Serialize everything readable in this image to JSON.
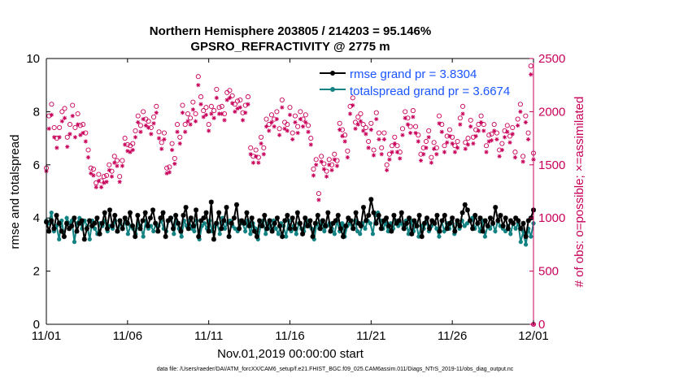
{
  "chart_data": {
    "type": "line",
    "title_line1": "Northern Hemisphere 203805 / 214203 = 95.146%",
    "title_line2": "GPSRO_REFRACTIVITY @ 2775 m",
    "xlabel": "Nov.01,2019 00:00:00 start",
    "ylabel_left": "rmse and totalspread",
    "ylabel_right": "# of obs: o=possible; ×=assimilated",
    "footnote": "data file: /Users/raeder/DAI/ATM_forcXX/CAM6_setup/f.e21.FHIST_BGC.f09_025.CAM6assim.011/Diags_NTrS_2019-11/obs_diag_output.nc",
    "x_unit": "days since 11/01 00:00 (6-hourly)",
    "xlim": [
      0,
      30
    ],
    "x_ticks": [
      0,
      5,
      10,
      15,
      20,
      25,
      30
    ],
    "x_tick_labels": [
      "11/01",
      "11/06",
      "11/11",
      "11/16",
      "11/21",
      "11/26",
      "12/01"
    ],
    "ylim_left": [
      0,
      10
    ],
    "y_ticks_left": [
      0,
      2,
      4,
      6,
      8,
      10
    ],
    "y_tick_labels_left": [
      "0",
      "2",
      "4",
      "6",
      "8",
      "10"
    ],
    "ylim_right": [
      0,
      2500
    ],
    "y_ticks_right": [
      0,
      500,
      1000,
      1500,
      2000,
      2500
    ],
    "y_tick_labels_right": [
      "0",
      "500",
      "1000",
      "1500",
      "2000",
      "2500"
    ],
    "legend_position": "top-right",
    "colors": {
      "rmse": "#000000",
      "spread": "#138282",
      "obs": "#c8005a",
      "legend_text": "#1a55ff"
    },
    "series": [
      {
        "name": "rmse grand pr = 3.8304",
        "axis": "left",
        "values": [
          3.85,
          3.5,
          3.9,
          3.6,
          4.1,
          3.8,
          3.5,
          3.3,
          3.8,
          3.6,
          3.7,
          4.0,
          3.5,
          3.8,
          3.9,
          3.2,
          3.6,
          3.9,
          3.7,
          3.8,
          4.0,
          3.4,
          3.8,
          4.2,
          3.6,
          4.3,
          3.7,
          4.1,
          3.5,
          3.9,
          3.6,
          4.0,
          3.8,
          4.2,
          3.7,
          3.3,
          4.1,
          3.6,
          3.9,
          4.2,
          3.7,
          4.0,
          4.3,
          3.8,
          3.5,
          4.0,
          4.2,
          3.3,
          3.9,
          4.0,
          3.6,
          4.1,
          3.8,
          3.5,
          4.1,
          4.4,
          3.6,
          4.0,
          3.7,
          4.3,
          3.3,
          3.9,
          4.0,
          4.2,
          3.5,
          4.6,
          3.2,
          3.8,
          4.2,
          3.6,
          3.9,
          4.4,
          3.3,
          3.8,
          4.0,
          4.5,
          3.6,
          3.9,
          3.8,
          4.2,
          3.7,
          4.0,
          3.5,
          3.3,
          3.9,
          3.7,
          4.1,
          3.6,
          3.9,
          3.5,
          3.8,
          4.0,
          3.7,
          3.3,
          3.9,
          4.1,
          3.6,
          4.0,
          3.6,
          4.2,
          3.8,
          3.4,
          4.0,
          3.7,
          3.9,
          3.3,
          3.8,
          4.1,
          3.6,
          3.9,
          3.7,
          4.2,
          3.5,
          3.8,
          3.9,
          4.1,
          3.6,
          3.3,
          3.7,
          4.0,
          3.9,
          3.6,
          4.2,
          3.8,
          3.7,
          4.4,
          3.9,
          4.1,
          4.7,
          4.2,
          3.8,
          4.1,
          3.6,
          3.9,
          4.0,
          3.7,
          3.5,
          4.1,
          3.8,
          3.9,
          4.2,
          3.6,
          3.8,
          4.0,
          3.4,
          3.9,
          3.7,
          4.1,
          3.3,
          3.8,
          4.0,
          3.6,
          3.9,
          3.8,
          4.1,
          3.5,
          3.9,
          4.1,
          3.6,
          3.8,
          4.0,
          3.5,
          3.9,
          3.7,
          4.2,
          4.5,
          4.3,
          3.9,
          3.6,
          4.1,
          3.8,
          4.0,
          3.5,
          3.9,
          3.7,
          4.0,
          3.8,
          4.4,
          3.9,
          4.1,
          3.7,
          4.0,
          3.6,
          3.9,
          3.8,
          4.0,
          3.9,
          3.6,
          3.8,
          3.3,
          3.9,
          4.0,
          4.3
        ],
        "grand_mean": 3.8304
      },
      {
        "name": "totalspread grand pr = 3.6674",
        "axis": "left",
        "values": [
          3.9,
          3.8,
          4.2,
          3.5,
          3.7,
          3.2,
          3.9,
          3.3,
          4.0,
          3.8,
          3.9,
          3.1,
          3.8,
          4.0,
          3.6,
          3.9,
          3.7,
          3.2,
          3.9,
          3.6,
          3.4,
          3.8,
          3.7,
          3.9,
          3.5,
          3.7,
          3.6,
          3.9,
          3.5,
          3.8,
          3.6,
          3.9,
          3.4,
          3.7,
          3.6,
          3.4,
          3.8,
          3.7,
          3.3,
          3.9,
          3.6,
          3.7,
          3.5,
          3.8,
          3.7,
          3.9,
          3.6,
          3.5,
          3.9,
          4.0,
          3.4,
          3.9,
          3.6,
          3.3,
          3.9,
          3.7,
          3.9,
          3.6,
          3.5,
          3.9,
          3.2,
          3.7,
          3.8,
          3.6,
          3.9,
          3.5,
          3.7,
          3.8,
          3.4,
          4.0,
          3.6,
          3.8,
          3.9,
          3.7,
          3.6,
          3.5,
          3.9,
          3.8,
          3.5,
          3.9,
          3.4,
          3.8,
          3.6,
          3.2,
          3.7,
          3.9,
          3.4,
          3.8,
          3.6,
          3.9,
          3.6,
          3.4,
          3.8,
          3.7,
          3.3,
          3.9,
          3.5,
          3.7,
          3.4,
          3.8,
          3.6,
          3.5,
          3.9,
          3.7,
          3.6,
          3.2,
          3.8,
          3.6,
          3.9,
          3.5,
          3.7,
          3.8,
          3.6,
          3.4,
          3.9,
          3.5,
          3.8,
          3.3,
          3.7,
          3.8,
          3.6,
          3.9,
          3.5,
          3.4,
          3.8,
          3.6,
          3.9,
          3.8,
          3.4,
          4.1,
          4.2,
          3.9,
          3.6,
          3.8,
          3.5,
          3.8,
          3.6,
          3.9,
          3.7,
          3.8,
          3.6,
          3.9,
          3.4,
          3.9,
          3.5,
          3.8,
          3.3,
          3.7,
          3.6,
          3.9,
          3.5,
          3.7,
          3.8,
          3.6,
          3.3,
          3.9,
          3.5,
          3.8,
          3.6,
          3.9,
          3.4,
          3.8,
          3.6,
          3.9,
          3.7,
          3.8,
          3.9,
          4.0,
          3.6,
          3.8,
          3.5,
          3.9,
          3.3,
          3.7,
          3.6,
          3.8,
          3.5,
          3.9,
          3.7,
          3.6,
          3.5,
          3.7,
          3.4,
          3.8,
          3.6,
          3.8,
          3.1,
          3.5,
          3.0,
          3.6,
          3.3,
          3.8
        ],
        "grand_mean": 3.6674
      },
      {
        "name": "possible obs",
        "axis": "right",
        "marker": "o",
        "values": [
          1470,
          1960,
          2070,
          1850,
          1750,
          1850,
          2000,
          2030,
          1760,
          1880,
          2060,
          1850,
          1980,
          1870,
          1880,
          1800,
          1640,
          1470,
          1460,
          1330,
          1410,
          1350,
          1390,
          1400,
          1500,
          1440,
          1580,
          1540,
          1390,
          1540,
          1750,
          1690,
          1680,
          1700,
          1820,
          1960,
          1870,
          2000,
          1930,
          1910,
          1850,
          1950,
          2050,
          1810,
          1710,
          1800,
          1470,
          1480,
          1700,
          1560,
          1880,
          1760,
          2060,
          1880,
          1980,
          1940,
          2090,
          1980,
          2330,
          2140,
          2010,
          2040,
          1880,
          2050,
          2010,
          2210,
          2040,
          2050,
          1980,
          2180,
          2200,
          2150,
          2070,
          2100,
          2110,
          1990,
          2060,
          2140,
          1660,
          1580,
          1640,
          1570,
          1760,
          1660,
          1930,
          1880,
          1970,
          1930,
          2000,
          1840,
          2110,
          1900,
          1880,
          2040,
          1800,
          1960,
          1860,
          2000,
          1930,
          1970,
          1870,
          1750,
          1460,
          1550,
          1230,
          1580,
          1510,
          1440,
          1550,
          1500,
          1600,
          1540,
          1890,
          1830,
          1780,
          1630,
          2050,
          2130,
          1900,
          1950,
          1980,
          1880,
          1850,
          1720,
          1890,
          1640,
          1990,
          1800,
          1660,
          1800,
          1500,
          1600,
          1680,
          1760,
          1680,
          1620,
          1840,
          2000,
          1940,
          1860,
          2010,
          1860,
          1780,
          1600,
          1660,
          1720,
          1820,
          1570,
          1710,
          1660,
          1960,
          1880,
          1680,
          1770,
          1830,
          1760,
          1680,
          1720,
          1940,
          2050,
          1710,
          1750,
          1920,
          1760,
          1830,
          1880,
          1960,
          1880,
          1680,
          1780,
          1790,
          1880,
          1800,
          1640,
          1700,
          1820,
          1870,
          1770,
          1850,
          1620,
          1930,
          2070,
          1580,
          1960,
          1800,
          2430,
          1610
        ],
        "x_end_value": 0
      },
      {
        "name": "assimilated obs",
        "axis": "right",
        "marker": "x",
        "values": [
          1440,
          1840,
          1970,
          1760,
          1660,
          1760,
          1910,
          1940,
          1670,
          1790,
          1960,
          1760,
          1880,
          1780,
          1800,
          1720,
          1570,
          1420,
          1400,
          1290,
          1350,
          1290,
          1330,
          1340,
          1450,
          1390,
          1520,
          1490,
          1340,
          1490,
          1690,
          1630,
          1620,
          1640,
          1760,
          1900,
          1810,
          1930,
          1870,
          1850,
          1790,
          1890,
          1990,
          1750,
          1650,
          1740,
          1420,
          1430,
          1640,
          1510,
          1810,
          1700,
          1990,
          1810,
          1910,
          1880,
          2020,
          1910,
          2250,
          2070,
          1950,
          1970,
          1820,
          1980,
          1940,
          2130,
          1980,
          1980,
          1920,
          2110,
          2130,
          2080,
          2000,
          2030,
          2040,
          1920,
          1990,
          2070,
          1600,
          1520,
          1580,
          1520,
          1700,
          1600,
          1860,
          1820,
          1900,
          1860,
          1930,
          1780,
          2040,
          1840,
          1820,
          1970,
          1740,
          1900,
          1800,
          1930,
          1860,
          1900,
          1810,
          1690,
          1400,
          1500,
          1170,
          1530,
          1460,
          1390,
          1500,
          1450,
          1550,
          1490,
          1830,
          1770,
          1720,
          1570,
          1980,
          2060,
          1840,
          1880,
          1910,
          1820,
          1790,
          1660,
          1830,
          1590,
          1930,
          1740,
          1600,
          1740,
          1450,
          1550,
          1620,
          1700,
          1620,
          1560,
          1780,
          1940,
          1880,
          1800,
          1950,
          1800,
          1720,
          1540,
          1600,
          1660,
          1760,
          1520,
          1650,
          1600,
          1890,
          1810,
          1620,
          1710,
          1770,
          1700,
          1620,
          1660,
          1880,
          1980,
          1650,
          1690,
          1860,
          1700,
          1770,
          1820,
          1900,
          1820,
          1620,
          1720,
          1730,
          1820,
          1740,
          1580,
          1640,
          1760,
          1810,
          1710,
          1790,
          1570,
          1870,
          2000,
          1530,
          1900,
          1740,
          2350,
          1550
        ],
        "x_end_value": 0
      }
    ]
  }
}
